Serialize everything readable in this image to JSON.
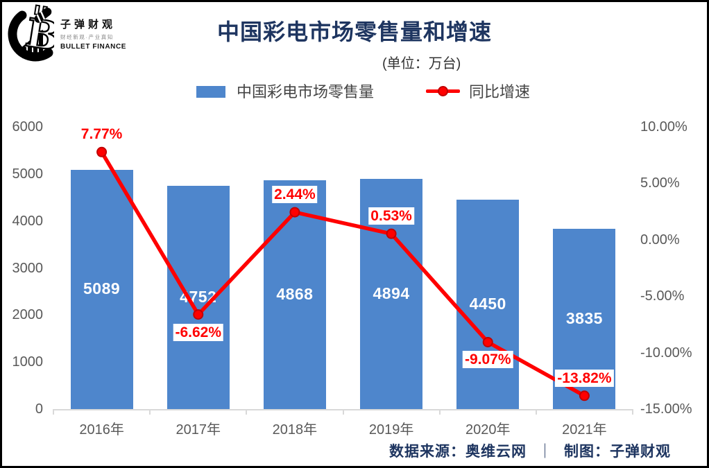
{
  "brand": {
    "name": "子弹财观",
    "tagline": "财经新观·产业真知",
    "name_en": "BULLET FINANCE"
  },
  "header": {
    "title": "中国彩电市场零售量和增速",
    "unit_note": "(单位：万台)"
  },
  "legend": {
    "bar_label": "中国彩电市场零售量",
    "line_label": "同比增速",
    "position": "top"
  },
  "footer": {
    "source": "数据来源：奥维云网",
    "separator": "｜",
    "credit": "制图：子弹财观"
  },
  "colors": {
    "title": "#1E3560",
    "bar": "#4E86CC",
    "line": "#FF0000",
    "marker_edge": "#C00000",
    "pct_label": "#FF0000",
    "bar_value_label": "#FFFFFF",
    "axis_text": "#595959",
    "legend_text": "#444444",
    "axis_line": "#D9D9D9",
    "source_text": "#1E3560",
    "frame_border": "#000000"
  },
  "chart_data": {
    "type": "combo-bar-line",
    "title": "中国彩电市场零售量和增速",
    "subtitle": "(单位：万台)",
    "categories": [
      "2016年",
      "2017年",
      "2018年",
      "2019年",
      "2020年",
      "2021年"
    ],
    "grid": false,
    "legend_position": "top",
    "bar_series": {
      "name": "中国彩电市场零售量",
      "axis": "left",
      "values": [
        5089,
        4752,
        4868,
        4894,
        4450,
        3835
      ],
      "labels": [
        "5089",
        "4752",
        "4868",
        "4894",
        "4450",
        "3835"
      ]
    },
    "line_series": {
      "name": "同比增速",
      "axis": "right",
      "values": [
        7.77,
        -6.62,
        2.44,
        0.53,
        -9.07,
        -13.82
      ],
      "labels": [
        "7.77%",
        "-6.62%",
        "2.44%",
        "0.53%",
        "-9.07%",
        "-13.82%"
      ],
      "label_position": [
        "above",
        "below",
        "above",
        "above",
        "below",
        "above"
      ]
    },
    "left_axis": {
      "min": 0,
      "max": 6000,
      "ticks": [
        "6000",
        "5000",
        "4000",
        "3000",
        "2000",
        "1000",
        "0"
      ]
    },
    "right_axis": {
      "min": -15,
      "max": 10,
      "ticks": [
        "10.00%",
        "5.00%",
        "0.00%",
        "-5.00%",
        "-10.00%",
        "-15.00%"
      ]
    }
  }
}
